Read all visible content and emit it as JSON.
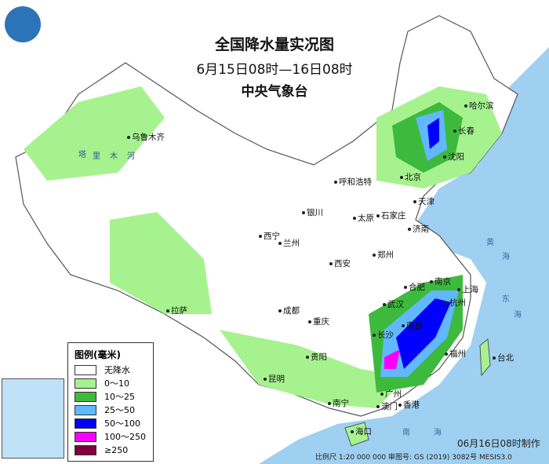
{
  "title": {
    "main": "全国降水量实况图",
    "period": "6月15日08时—16日08时",
    "agency": "中央气象台"
  },
  "cities": [
    "哈尔滨",
    "长春",
    "沈阳",
    "乌鲁木齐",
    "呼和浩特",
    "北京",
    "天津",
    "石家庄",
    "太原",
    "济南",
    "银川",
    "西宁",
    "兰州",
    "西安",
    "郑州",
    "合肥",
    "南京",
    "上海",
    "杭州",
    "武汉",
    "成都",
    "重庆",
    "长沙",
    "南昌",
    "福州",
    "台北",
    "拉萨",
    "贵阳",
    "昆明",
    "南宁",
    "广州",
    "澳门",
    "香港",
    "海口"
  ],
  "seas": [
    "黄",
    "海",
    "东",
    "海",
    "南",
    "海"
  ],
  "rivers": [
    "塔",
    "里",
    "木",
    "河"
  ],
  "legend": {
    "title": "图例(毫米)",
    "items": [
      {
        "label": "无降水",
        "color": "#ffffff"
      },
      {
        "label": "0～10",
        "color": "#a6f28f"
      },
      {
        "label": "10～25",
        "color": "#3dba3d"
      },
      {
        "label": "25～50",
        "color": "#61b8ff"
      },
      {
        "label": "50～100",
        "color": "#0000ff"
      },
      {
        "label": "100～250",
        "color": "#fa00fa"
      },
      {
        "label": "≥250",
        "color": "#800040"
      }
    ]
  },
  "footer": {
    "made": "06月16日08时制作",
    "scale": "比例尺 1:20 000 000 审图号: GS (2019) 3082号 MESIS3.0"
  }
}
